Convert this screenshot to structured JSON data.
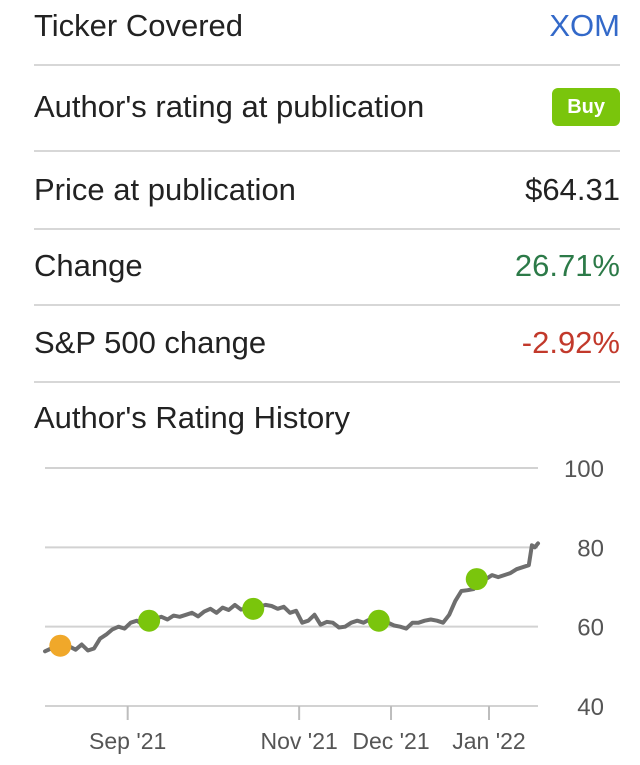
{
  "summary": {
    "ticker_label": "Ticker Covered",
    "ticker_value": "XOM",
    "rating_label": "Author's rating at publication",
    "rating_value": "Buy",
    "price_label": "Price at publication",
    "price_value": "$64.31",
    "change_label": "Change",
    "change_value": "26.71%",
    "sp_label": "S&P 500 change",
    "sp_value": "-2.92%"
  },
  "colors": {
    "link": "#3369c9",
    "buy_badge": "#7ac50c",
    "positive": "#2c7a48",
    "negative": "#c2392b",
    "line": "#6e6e6e",
    "marker_buy": "#7ac50c",
    "marker_first": "#f0a82a"
  },
  "chart_data": {
    "type": "line",
    "title": "Author's Rating History",
    "y_ticks": [
      100,
      80,
      60,
      40
    ],
    "ylim": [
      40,
      100
    ],
    "x_tick_labels": [
      "Sep '21",
      "Nov '21",
      "Dec '21",
      "Jan '22"
    ],
    "x_tick_days": [
      5,
      61,
      91,
      123
    ],
    "grid": true,
    "series": [
      {
        "values": [
          [
            -22,
            53.8
          ],
          [
            -20,
            54.5
          ],
          [
            -18,
            55.5
          ],
          [
            -16,
            56.3
          ],
          [
            -14,
            55.0
          ],
          [
            -12,
            54.2
          ],
          [
            -10,
            55.5
          ],
          [
            -8,
            54.0
          ],
          [
            -6,
            54.5
          ],
          [
            -4,
            57.0
          ],
          [
            -2,
            58.0
          ],
          [
            0,
            59.3
          ],
          [
            2,
            60.0
          ],
          [
            4,
            59.5
          ],
          [
            6,
            61.0
          ],
          [
            8,
            61.5
          ],
          [
            10,
            60.5
          ],
          [
            12,
            61.0
          ],
          [
            14,
            62.0
          ],
          [
            16,
            62.5
          ],
          [
            18,
            61.8
          ],
          [
            20,
            62.8
          ],
          [
            22,
            62.5
          ],
          [
            24,
            63.0
          ],
          [
            26,
            63.5
          ],
          [
            28,
            62.6
          ],
          [
            30,
            63.8
          ],
          [
            32,
            64.5
          ],
          [
            34,
            63.5
          ],
          [
            36,
            64.8
          ],
          [
            38,
            64.2
          ],
          [
            40,
            65.5
          ],
          [
            42,
            64.3
          ],
          [
            44,
            64.7
          ],
          [
            46,
            64.0
          ],
          [
            48,
            65.0
          ],
          [
            50,
            65.5
          ],
          [
            52,
            65.2
          ],
          [
            54,
            64.5
          ],
          [
            56,
            65.0
          ],
          [
            58,
            63.5
          ],
          [
            60,
            64.0
          ],
          [
            62,
            61.0
          ],
          [
            64,
            61.5
          ],
          [
            66,
            63.0
          ],
          [
            68,
            60.5
          ],
          [
            70,
            61.2
          ],
          [
            72,
            61.0
          ],
          [
            74,
            59.8
          ],
          [
            76,
            60.0
          ],
          [
            78,
            61.0
          ],
          [
            80,
            61.5
          ],
          [
            82,
            61.0
          ],
          [
            84,
            61.8
          ],
          [
            86,
            61.5
          ],
          [
            88,
            61.5
          ],
          [
            90,
            61.0
          ],
          [
            92,
            60.3
          ],
          [
            94,
            60.0
          ],
          [
            96,
            59.5
          ],
          [
            98,
            61.0
          ],
          [
            100,
            61.0
          ],
          [
            102,
            61.5
          ],
          [
            104,
            61.8
          ],
          [
            106,
            61.5
          ],
          [
            108,
            61.0
          ],
          [
            110,
            63.0
          ],
          [
            112,
            66.5
          ],
          [
            114,
            69.0
          ],
          [
            116,
            69.2
          ],
          [
            118,
            69.5
          ],
          [
            120,
            71.5
          ],
          [
            122,
            72.0
          ],
          [
            124,
            73.0
          ],
          [
            126,
            72.5
          ],
          [
            128,
            73.0
          ],
          [
            130,
            73.5
          ],
          [
            132,
            74.5
          ],
          [
            134,
            75.0
          ],
          [
            136,
            75.5
          ],
          [
            137,
            80.5
          ],
          [
            138,
            80.0
          ],
          [
            139,
            81.0
          ]
        ]
      }
    ],
    "markers": [
      {
        "day": -17,
        "value": 55.2,
        "color": "#f0a82a"
      },
      {
        "day": 12,
        "value": 61.5,
        "color": "#7ac50c"
      },
      {
        "day": 46,
        "value": 64.5,
        "color": "#7ac50c"
      },
      {
        "day": 87,
        "value": 61.5,
        "color": "#7ac50c"
      },
      {
        "day": 119,
        "value": 72.0,
        "color": "#7ac50c"
      }
    ]
  }
}
